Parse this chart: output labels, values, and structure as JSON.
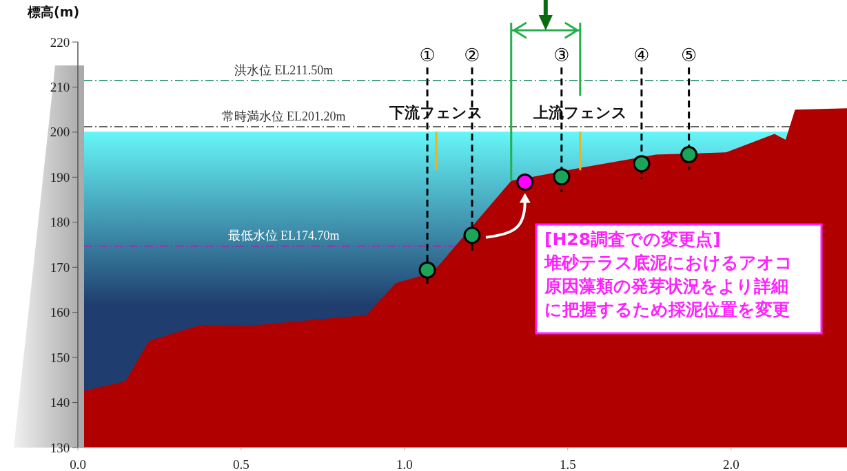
{
  "chart_data": {
    "type": "area",
    "ylabel": "標高(m)",
    "xlim": [
      0,
      2.355
    ],
    "ylim": [
      130,
      220
    ],
    "xticks": [
      {
        "value": 0,
        "label": "0.0"
      },
      {
        "value": 0.5,
        "label": "0.5"
      },
      {
        "value": 1,
        "label": "1.0"
      },
      {
        "value": 1.5,
        "label": "1.5"
      },
      {
        "value": 2,
        "label": "2.0"
      }
    ],
    "yticks": [
      130,
      140,
      150,
      160,
      170,
      180,
      190,
      200,
      210,
      220
    ],
    "grid": false,
    "series": [
      {
        "color": "#b00000",
        "x": [
          0.019,
          0.146,
          0.217,
          0.369,
          0.521,
          0.884,
          0.973,
          1.061,
          1.1,
          1.327,
          1.542,
          1.77,
          1.985,
          2.133,
          2.167,
          2.196,
          2.355
        ],
        "values": [
          142.6,
          144.7,
          153.6,
          157.1,
          157.0,
          159.4,
          166.5,
          168.3,
          170.0,
          189.2,
          192.1,
          195.0,
          195.5,
          199.6,
          198.3,
          205.0,
          205.3
        ]
      },
      {
        "type": "scatter",
        "color": "#1aa55a",
        "marker": "circle",
        "x": [
          1.07,
          1.207,
          1.481,
          1.726,
          1.871
        ],
        "values": [
          169.4,
          177.1,
          190.1,
          193.0,
          195.0
        ]
      },
      {
        "type": "scatter",
        "color": "#ff00ff",
        "marker": "circle",
        "x": [
          1.369
        ],
        "values": [
          188.9
        ]
      }
    ],
    "ref_lines": [
      {
        "axis": "y",
        "value": 211.5,
        "label": "洪水位 EL211.50m",
        "color": "#1a8a6a",
        "line_style": "dashed"
      },
      {
        "axis": "y",
        "value": 201.2,
        "label": "常時満水位 EL201.20m",
        "color": "#333333",
        "line_style": "dashed"
      },
      {
        "axis": "y",
        "value": 174.7,
        "label": "最低水位 EL174.70m",
        "color": "#b020b0",
        "line_style": "dashed"
      }
    ],
    "bands": [
      {
        "axis": "y",
        "from": 130,
        "to": 200.1,
        "color": "#1f3d6e"
      }
    ],
    "annotations": [
      "①",
      "②",
      "③",
      "④",
      "⑤",
      "下流フェンス",
      "上流フェンス",
      "[H28調査での変更点]",
      "堆砂テラス底泥におけるアオコ原因藻類の発芽状況をより詳細に把握するため採泥位置を変更"
    ]
  }
}
